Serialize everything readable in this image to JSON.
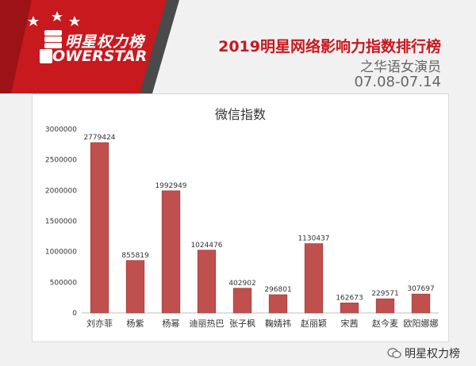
{
  "header": {
    "logo_cn": "明星权力榜",
    "logo_en": "OWERSTAR",
    "headline": "2019明星网络影响力指数排行榜",
    "subline": "之华语女演员",
    "dates": "07.08-07.14"
  },
  "watermark": {
    "text": "明星权力榜",
    "icon": "wechat-icon"
  },
  "colors": {
    "bar": "#c0504d",
    "bar_stroke": "#a43f3c",
    "banner_red": "#c8191f",
    "banner_gray": "#4a4a4a"
  },
  "chart_data": {
    "type": "bar",
    "title": "微信指数",
    "xlabel": "",
    "ylabel": "",
    "ylim": [
      0,
      3000000
    ],
    "yticks": [
      0,
      500000,
      1000000,
      1500000,
      2000000,
      2500000,
      3000000
    ],
    "grid": false,
    "categories": [
      "刘亦菲",
      "杨紫",
      "杨幂",
      "迪丽热巴",
      "张子枫",
      "鞠婧祎",
      "赵丽颖",
      "宋茜",
      "赵今麦",
      "欧阳娜娜"
    ],
    "values": [
      2779424,
      855819,
      1992949,
      1024476,
      402902,
      296801,
      1130437,
      162673,
      229571,
      307697
    ]
  }
}
